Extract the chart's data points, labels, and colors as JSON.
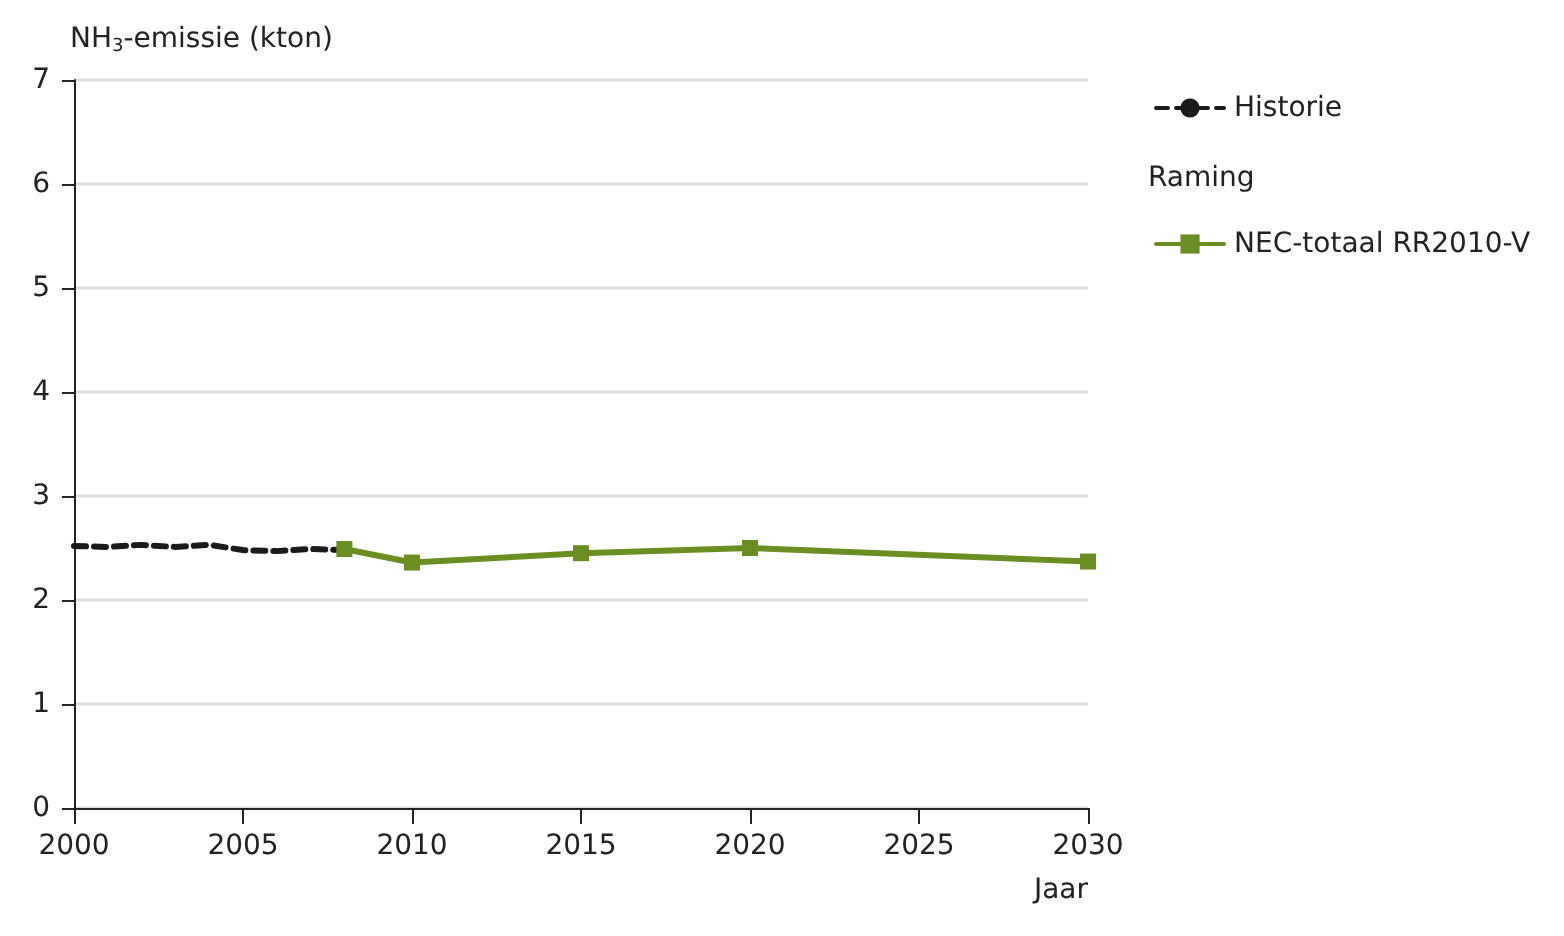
{
  "chart_data": {
    "type": "line",
    "ylabel": "NH$_{3}$-emissie (kton)",
    "xlabel": "Jaar",
    "legend_title": "Raming",
    "series": [
      {
        "name": "Historie",
        "color": "#1a1a1a",
        "line_style": "dashed",
        "marker": "none",
        "x": [
          2000,
          2001,
          2002,
          2003,
          2004,
          2005,
          2006,
          2007,
          2008
        ],
        "values": [
          2.52,
          2.51,
          2.53,
          2.51,
          2.53,
          2.48,
          2.47,
          2.49,
          2.48
        ]
      },
      {
        "name": "NEC-totaal RR2010-V",
        "color": "#6b8e23",
        "line_style": "solid",
        "marker": "square",
        "x": [
          2008,
          2010,
          2015,
          2020,
          2030
        ],
        "values": [
          2.49,
          2.36,
          2.45,
          2.5,
          2.37
        ]
      }
    ],
    "xlim": [
      2000,
      2030
    ],
    "xticks": [
      2000,
      2005,
      2010,
      2015,
      2020,
      2025,
      2030
    ],
    "ylim": [
      0,
      7
    ],
    "yticks": [
      0,
      1,
      2,
      3,
      4,
      5,
      6,
      7
    ],
    "grid": "y",
    "legend": "right"
  }
}
